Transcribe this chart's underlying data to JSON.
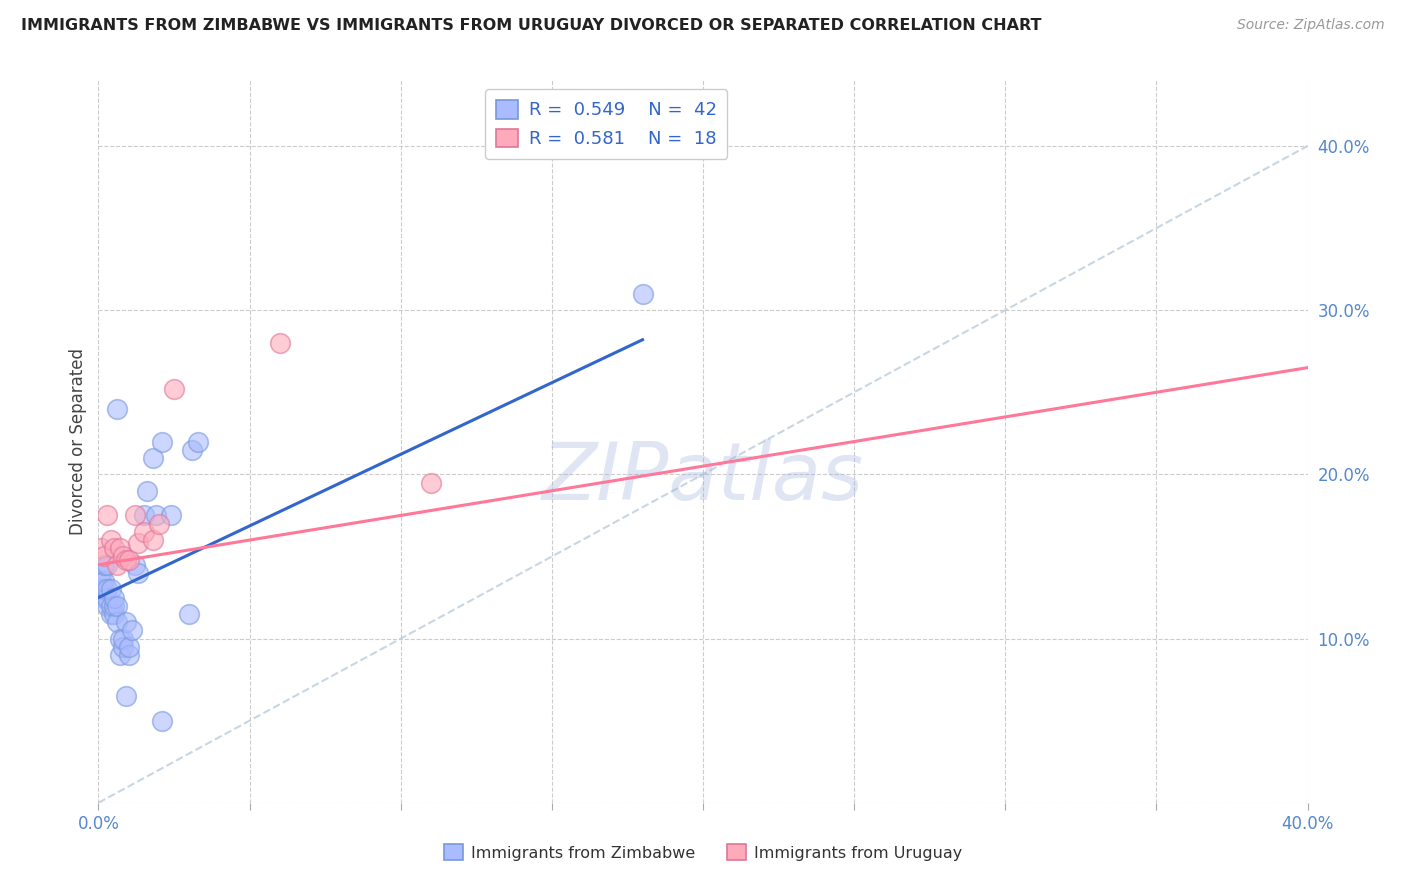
{
  "title": "IMMIGRANTS FROM ZIMBABWE VS IMMIGRANTS FROM URUGUAY DIVORCED OR SEPARATED CORRELATION CHART",
  "source": "Source: ZipAtlas.com",
  "ylabel": "Divorced or Separated",
  "legend_zimbabwe": "Immigrants from Zimbabwe",
  "legend_uruguay": "Immigrants from Uruguay",
  "R_zimbabwe": "0.549",
  "N_zimbabwe": "42",
  "R_uruguay": "0.581",
  "N_uruguay": "18",
  "color_zimbabwe_fill": "#aabbff",
  "color_zimbabwe_edge": "#7799dd",
  "color_uruguay_fill": "#ffaabb",
  "color_uruguay_edge": "#dd7799",
  "color_diagonal": "#bbccdd",
  "color_fit_zimbabwe": "#3366cc",
  "color_fit_uruguay": "#ff7799",
  "xlim": [
    0.0,
    0.4
  ],
  "ylim": [
    0.0,
    0.44
  ],
  "watermark": "ZIPatlas",
  "watermark_color": "#99aadd",
  "zimbabwe_x": [
    0.001,
    0.001,
    0.001,
    0.002,
    0.002,
    0.002,
    0.002,
    0.003,
    0.003,
    0.003,
    0.003,
    0.004,
    0.004,
    0.004,
    0.005,
    0.005,
    0.005,
    0.006,
    0.006,
    0.007,
    0.007,
    0.008,
    0.008,
    0.009,
    0.01,
    0.01,
    0.011,
    0.012,
    0.013,
    0.015,
    0.016,
    0.018,
    0.019,
    0.021,
    0.024,
    0.03,
    0.031,
    0.033,
    0.18,
    0.021,
    0.006,
    0.009
  ],
  "zimbabwe_y": [
    0.13,
    0.135,
    0.14,
    0.125,
    0.13,
    0.135,
    0.145,
    0.12,
    0.125,
    0.13,
    0.145,
    0.115,
    0.12,
    0.13,
    0.115,
    0.12,
    0.125,
    0.11,
    0.12,
    0.09,
    0.1,
    0.095,
    0.1,
    0.11,
    0.09,
    0.095,
    0.105,
    0.145,
    0.14,
    0.175,
    0.19,
    0.21,
    0.175,
    0.22,
    0.175,
    0.115,
    0.215,
    0.22,
    0.31,
    0.05,
    0.24,
    0.065
  ],
  "uruguay_x": [
    0.001,
    0.002,
    0.003,
    0.004,
    0.005,
    0.006,
    0.007,
    0.008,
    0.009,
    0.01,
    0.012,
    0.013,
    0.015,
    0.018,
    0.02,
    0.025,
    0.06,
    0.11
  ],
  "uruguay_y": [
    0.155,
    0.15,
    0.175,
    0.16,
    0.155,
    0.145,
    0.155,
    0.15,
    0.148,
    0.148,
    0.175,
    0.158,
    0.165,
    0.16,
    0.17,
    0.252,
    0.28,
    0.195
  ],
  "zim_fit_x0": 0.0,
  "zim_fit_y0": 0.125,
  "zim_fit_x1": 0.18,
  "zim_fit_y1": 0.282,
  "uru_fit_x0": 0.0,
  "uru_fit_y0": 0.145,
  "uru_fit_x1": 0.4,
  "uru_fit_y1": 0.265
}
